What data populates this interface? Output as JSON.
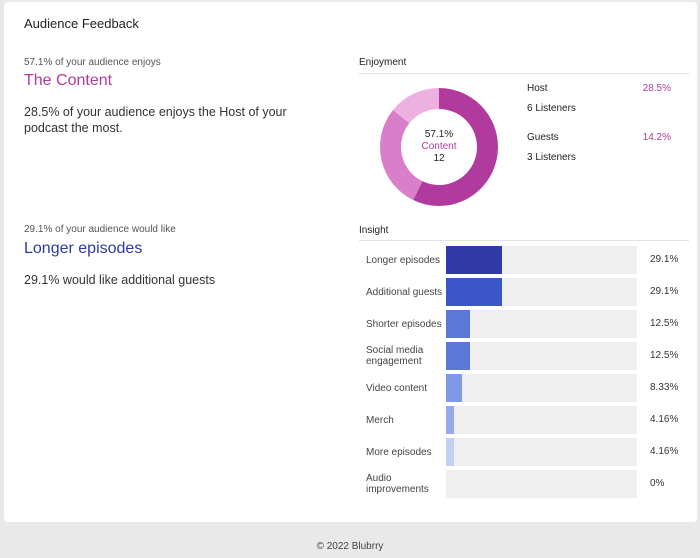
{
  "card_title": "Audience Feedback",
  "top_left": {
    "kicker": "57.1% of your audience enjoys",
    "headline": "The Content",
    "body": "28.5% of your audience enjoys the Host of your podcast the most."
  },
  "enjoyment": {
    "label": "Enjoyment",
    "center_pct": "57.1%",
    "center_name": "Content",
    "center_count": "12",
    "legend": [
      {
        "name": "Host",
        "pct": "28.5%",
        "listeners": "6 Listeners"
      },
      {
        "name": "Guests",
        "pct": "14.2%",
        "listeners": "3 Listeners"
      }
    ],
    "colors": {
      "content": "#b13a9e",
      "host": "#d97fca",
      "guests": "#eeb0e1"
    }
  },
  "bottom_left": {
    "kicker": "29.1% of your audience would like",
    "headline": "Longer episodes",
    "body": "29.1% would like additional guests"
  },
  "insight": {
    "label": "Insight",
    "rows": [
      {
        "label": "Longer episodes",
        "pct": "29.1%",
        "value": 29.1,
        "color": "#2f3aa8"
      },
      {
        "label": "Additional guests",
        "pct": "29.1%",
        "value": 29.1,
        "color": "#3a56c8"
      },
      {
        "label": "Shorter episodes",
        "pct": "12.5%",
        "value": 12.5,
        "color": "#5b78d6"
      },
      {
        "label": "Social media engagement",
        "pct": "12.5%",
        "value": 12.5,
        "color": "#5b78d6"
      },
      {
        "label": "Video content",
        "pct": "8.33%",
        "value": 8.33,
        "color": "#7f9be6"
      },
      {
        "label": "Merch",
        "pct": "4.16%",
        "value": 4.16,
        "color": "#93aaec"
      },
      {
        "label": "More episodes",
        "pct": "4.16%",
        "value": 4.16,
        "color": "#c3cff4"
      },
      {
        "label": "Audio improvements",
        "pct": "0%",
        "value": 0,
        "color": "#c3cff4"
      }
    ]
  },
  "chart_data": {
    "type": "pie",
    "categories": [
      "Content",
      "Host",
      "Guests"
    ],
    "values": [
      57.1,
      28.5,
      14.2
    ]
  },
  "footer": "© 2022 Blubrry"
}
